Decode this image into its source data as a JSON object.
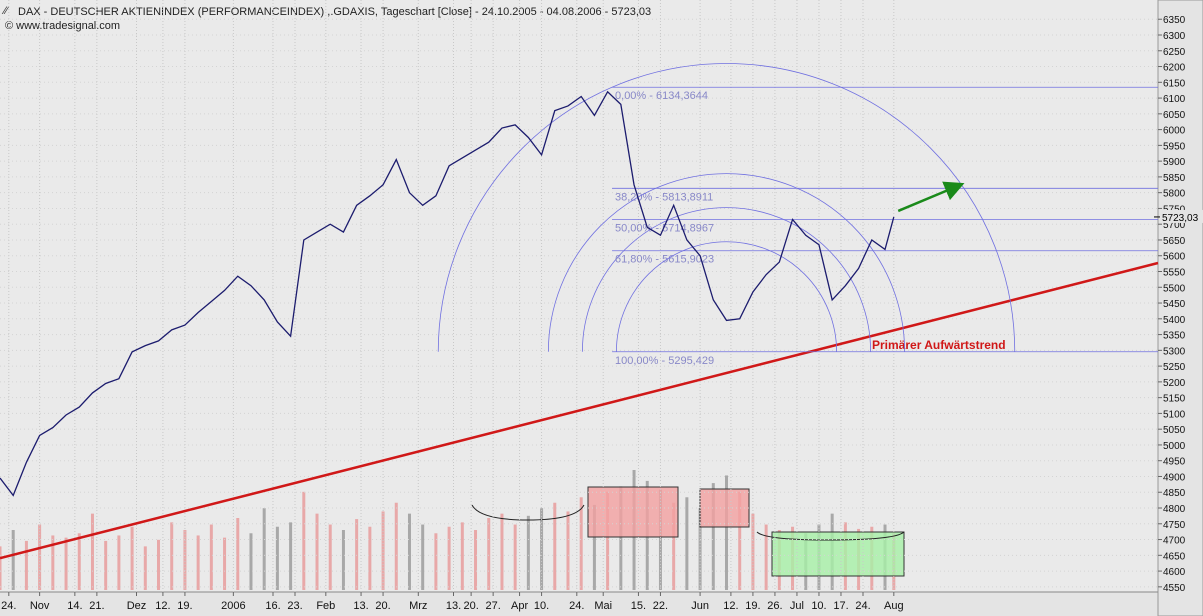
{
  "header": {
    "title": "DAX - DEUTSCHER AKTIENINDEX (PERFORMANCEINDEX) ,.GDAXIS, Tageschart [Close] - 24.10.2005 - 04.08.2006 - 5723,03",
    "copyright": "© www.tradesignal.com"
  },
  "chart_data": {
    "type": "line",
    "x": [
      0,
      3,
      6,
      9,
      12,
      15,
      18,
      21,
      24,
      27,
      30,
      33,
      36,
      39,
      42,
      45,
      48,
      51,
      54,
      57,
      60,
      63,
      66,
      69,
      72,
      75,
      78,
      81,
      84,
      87,
      90,
      93,
      96,
      99,
      102,
      105,
      108,
      111,
      114,
      117,
      120,
      123,
      126,
      129,
      132,
      135,
      138,
      141,
      144,
      147,
      150,
      153,
      156,
      159,
      162,
      165,
      168,
      171,
      174,
      177,
      180,
      183,
      186,
      189,
      192,
      195,
      198,
      201,
      203
    ],
    "series": [
      {
        "name": "DAX",
        "color": "#1c1c6e",
        "values": [
          4895,
          4840,
          4945,
          5030,
          5055,
          5095,
          5120,
          5165,
          5195,
          5210,
          5295,
          5315,
          5330,
          5365,
          5380,
          5420,
          5455,
          5490,
          5535,
          5505,
          5460,
          5390,
          5345,
          5650,
          5675,
          5700,
          5675,
          5760,
          5790,
          5825,
          5905,
          5800,
          5760,
          5790,
          5885,
          5910,
          5935,
          5960,
          6005,
          6015,
          5975,
          5920,
          6060,
          6075,
          6105,
          6045,
          6120,
          6080,
          5825,
          5690,
          5665,
          5760,
          5650,
          5600,
          5460,
          5395,
          5400,
          5485,
          5540,
          5580,
          5715,
          5665,
          5635,
          5460,
          5505,
          5560,
          5650,
          5620,
          5723.03
        ],
        "last_value_label": "5723,03"
      }
    ],
    "volume": [
      40,
      55,
      45,
      60,
      50,
      48,
      52,
      70,
      45,
      50,
      58,
      40,
      46,
      62,
      55,
      50,
      60,
      48,
      66,
      52,
      75,
      58,
      62,
      90,
      70,
      60,
      55,
      65,
      58,
      72,
      80,
      70,
      60,
      52,
      58,
      62,
      55,
      66,
      70,
      60,
      68,
      75,
      80,
      72,
      85,
      78,
      90,
      95,
      110,
      100,
      92,
      80,
      85,
      75,
      98,
      105,
      90,
      70,
      60,
      55,
      58,
      52,
      60,
      70,
      62,
      56,
      58,
      60,
      52
    ],
    "xlim": [
      0,
      263
    ],
    "xticks": [
      {
        "value": 2,
        "label": "24."
      },
      {
        "value": 9,
        "label": "Nov"
      },
      {
        "value": 17,
        "label": "14."
      },
      {
        "value": 22,
        "label": "21."
      },
      {
        "value": 31,
        "label": "Dez"
      },
      {
        "value": 37,
        "label": "12."
      },
      {
        "value": 42,
        "label": "19."
      },
      {
        "value": 53,
        "label": "2006"
      },
      {
        "value": 62,
        "label": "16."
      },
      {
        "value": 67,
        "label": "23."
      },
      {
        "value": 74,
        "label": "Feb"
      },
      {
        "value": 82,
        "label": "13."
      },
      {
        "value": 87,
        "label": "20."
      },
      {
        "value": 95,
        "label": "Mrz"
      },
      {
        "value": 103,
        "label": "13."
      },
      {
        "value": 107,
        "label": "20."
      },
      {
        "value": 112,
        "label": "27."
      },
      {
        "value": 118,
        "label": "Apr"
      },
      {
        "value": 123,
        "label": "10."
      },
      {
        "value": 131,
        "label": "24."
      },
      {
        "value": 137,
        "label": "Mai"
      },
      {
        "value": 145,
        "label": "15."
      },
      {
        "value": 150,
        "label": "22."
      },
      {
        "value": 159,
        "label": "Jun"
      },
      {
        "value": 166,
        "label": "12."
      },
      {
        "value": 171,
        "label": "19."
      },
      {
        "value": 176,
        "label": "26."
      },
      {
        "value": 181,
        "label": "Jul"
      },
      {
        "value": 186,
        "label": "10."
      },
      {
        "value": 191,
        "label": "17."
      },
      {
        "value": 196,
        "label": "24."
      },
      {
        "value": 203,
        "label": "Aug"
      }
    ],
    "ylim": [
      4540,
      6411
    ],
    "yticks": [
      4550,
      4600,
      4650,
      4700,
      4750,
      4800,
      4850,
      4900,
      4950,
      5000,
      5050,
      5100,
      5150,
      5200,
      5250,
      5300,
      5350,
      5400,
      5450,
      5500,
      5550,
      5600,
      5650,
      5700,
      5750,
      5800,
      5850,
      5900,
      5950,
      6000,
      6050,
      6100,
      6150,
      6200,
      6250,
      6300,
      6350
    ],
    "fibonacci": {
      "x": [
        139,
        165
      ],
      "color": "#7070e0",
      "levels": [
        {
          "value": 6134.3644,
          "label": "0,00% - 6134,3644"
        },
        {
          "value": 5813.8911,
          "label": "38,20% - 5813,8911"
        },
        {
          "value": 5714.8967,
          "label": "50,00% - 5714,8967"
        },
        {
          "value": 5615.9023,
          "label": "61,80% - 5615,9023"
        },
        {
          "value": 5295.429,
          "label": "100,00% - 5295,429"
        }
      ]
    },
    "trendline": {
      "x": [
        0,
        263
      ],
      "values": [
        4641,
        5577
      ],
      "color": "#d01818",
      "label": "Primärer Aufwärtstrend"
    },
    "arrow": {
      "x": [
        204,
        218
      ],
      "values": [
        5742,
        5824
      ],
      "color": "#1a8a1a"
    }
  }
}
